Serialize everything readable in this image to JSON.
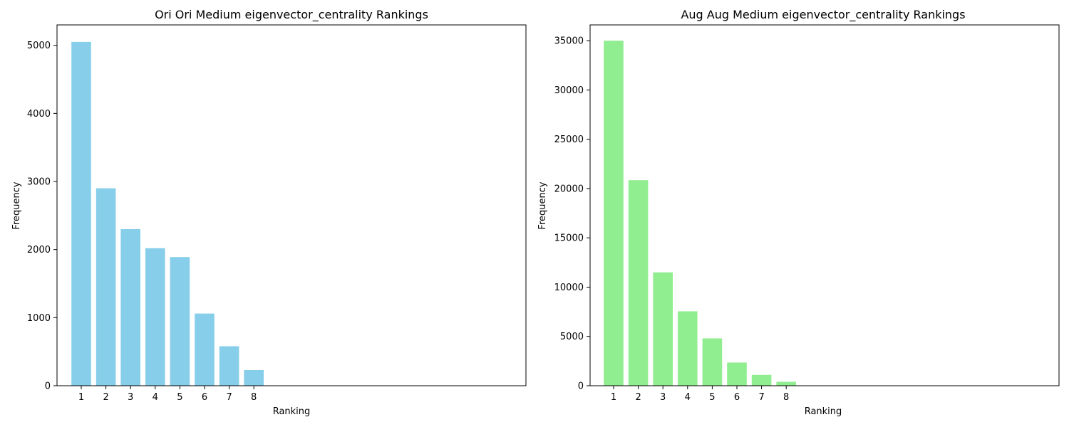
{
  "chart_data": [
    {
      "type": "bar",
      "title": "Ori Ori Medium eigenvector_centrality Rankings",
      "xlabel": "Ranking",
      "ylabel": "Frequency",
      "categories": [
        "1",
        "2",
        "3",
        "4",
        "5",
        "6",
        "7",
        "8"
      ],
      "values": [
        5050,
        2900,
        2300,
        2020,
        1890,
        1060,
        580,
        230
      ],
      "yticks": [
        "0",
        "1000",
        "2000",
        "3000",
        "4000",
        "5000"
      ],
      "ylim": [
        0,
        5300
      ],
      "bar_color": "#87CEEB",
      "grid": false
    },
    {
      "type": "bar",
      "title": "Aug Aug Medium eigenvector_centrality Rankings",
      "xlabel": "Ranking",
      "ylabel": "Frequency",
      "categories": [
        "1",
        "2",
        "3",
        "4",
        "5",
        "6",
        "7",
        "8"
      ],
      "values": [
        35000,
        20850,
        11500,
        7550,
        4800,
        2350,
        1100,
        400
      ],
      "yticks": [
        "0",
        "5000",
        "10000",
        "15000",
        "20000",
        "25000",
        "30000",
        "35000"
      ],
      "ylim": [
        0,
        36600
      ],
      "bar_color": "#90EE90",
      "grid": false
    }
  ]
}
